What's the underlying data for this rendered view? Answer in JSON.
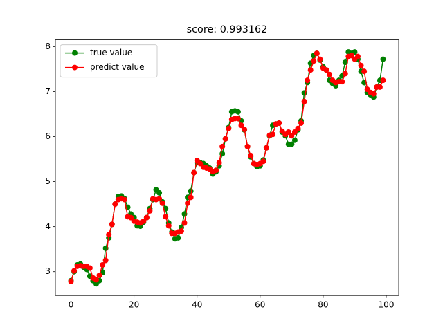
{
  "chart_data": {
    "type": "line",
    "title": "score: 0.993162",
    "x": [
      0,
      1,
      2,
      3,
      4,
      5,
      6,
      7,
      8,
      9,
      10,
      11,
      12,
      13,
      14,
      15,
      16,
      17,
      18,
      19,
      20,
      21,
      22,
      23,
      24,
      25,
      26,
      27,
      28,
      29,
      30,
      31,
      32,
      33,
      34,
      35,
      36,
      37,
      38,
      39,
      40,
      41,
      42,
      43,
      44,
      45,
      46,
      47,
      48,
      49,
      50,
      51,
      52,
      53,
      54,
      55,
      56,
      57,
      58,
      59,
      60,
      61,
      62,
      63,
      64,
      65,
      66,
      67,
      68,
      69,
      70,
      71,
      72,
      73,
      74,
      75,
      76,
      77,
      78,
      79,
      80,
      81,
      82,
      83,
      84,
      85,
      86,
      87,
      88,
      89,
      90,
      91,
      92,
      93,
      94,
      95,
      96,
      97,
      98,
      99
    ],
    "series": [
      {
        "name": "true value",
        "color": "#008000",
        "values": [
          2.8,
          3.0,
          3.15,
          3.17,
          3.1,
          3.05,
          2.9,
          2.8,
          2.73,
          2.8,
          2.98,
          3.52,
          3.75,
          4.05,
          4.5,
          4.67,
          4.68,
          4.62,
          4.43,
          4.28,
          4.2,
          4.02,
          4.01,
          4.1,
          4.2,
          4.4,
          4.6,
          4.82,
          4.75,
          4.55,
          4.4,
          4.08,
          3.88,
          3.73,
          3.75,
          3.98,
          4.28,
          4.65,
          4.79,
          5.2,
          5.42,
          5.42,
          5.4,
          5.35,
          5.3,
          5.17,
          5.22,
          5.35,
          5.62,
          5.95,
          6.2,
          6.55,
          6.57,
          6.55,
          6.35,
          6.15,
          5.78,
          5.55,
          5.4,
          5.33,
          5.35,
          5.48,
          5.75,
          6.02,
          6.25,
          6.28,
          6.3,
          6.1,
          6.02,
          5.83,
          5.83,
          5.92,
          6.15,
          6.35,
          6.97,
          7.2,
          7.63,
          7.8,
          7.85,
          7.7,
          7.55,
          7.48,
          7.25,
          7.18,
          7.13,
          7.25,
          7.35,
          7.65,
          7.88,
          7.85,
          7.88,
          7.72,
          7.45,
          7.2,
          6.98,
          6.93,
          6.88,
          7.1,
          7.25,
          7.72
        ]
      },
      {
        "name": "predict value",
        "color": "#ff0000",
        "values": [
          2.78,
          3.02,
          3.12,
          3.13,
          3.12,
          3.12,
          3.08,
          2.86,
          2.82,
          2.92,
          3.15,
          3.25,
          3.82,
          4.05,
          4.5,
          4.6,
          4.62,
          4.6,
          4.22,
          4.2,
          4.12,
          4.1,
          4.08,
          4.12,
          4.2,
          4.35,
          4.62,
          4.6,
          4.62,
          4.52,
          4.22,
          4.02,
          3.85,
          3.85,
          3.88,
          3.9,
          4.08,
          4.52,
          4.65,
          5.2,
          5.47,
          5.4,
          5.32,
          5.3,
          5.28,
          5.22,
          5.25,
          5.42,
          5.78,
          5.95,
          6.18,
          6.38,
          6.4,
          6.4,
          6.25,
          6.16,
          5.78,
          5.58,
          5.4,
          5.38,
          5.4,
          5.45,
          5.75,
          6.03,
          6.05,
          6.28,
          6.3,
          6.12,
          6.05,
          6.1,
          6.02,
          6.1,
          6.18,
          6.3,
          6.78,
          7.25,
          7.48,
          7.68,
          7.85,
          7.72,
          7.52,
          7.48,
          7.38,
          7.25,
          7.2,
          7.22,
          7.22,
          7.4,
          7.78,
          7.8,
          7.72,
          7.78,
          7.58,
          7.45,
          7.05,
          6.98,
          6.95,
          7.1,
          7.1,
          7.25
        ]
      }
    ],
    "xlim": [
      -4.95,
      103.95
    ],
    "xticks": [
      0,
      20,
      40,
      60,
      80,
      100
    ],
    "ylim": [
      2.47,
      8.15
    ],
    "yticks": [
      3,
      4,
      5,
      6,
      7,
      8
    ],
    "legend": "upper left"
  }
}
